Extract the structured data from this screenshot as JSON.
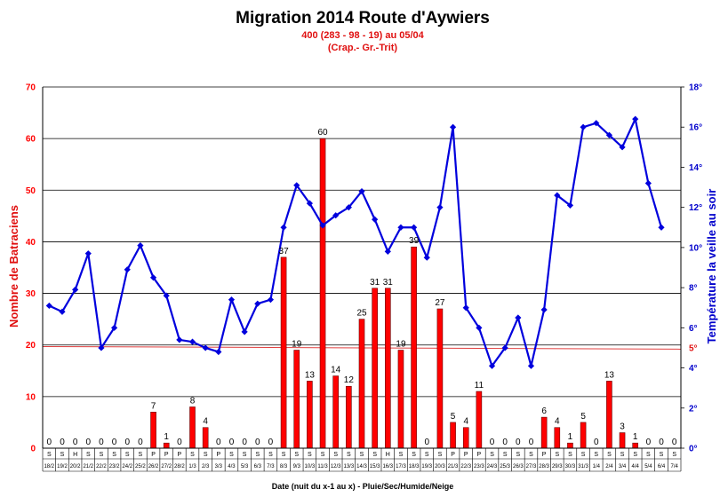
{
  "chart_data": {
    "type": "bar",
    "title": "Migration 2014 Route d'Aywiers",
    "subtitle_1": "400 (283 - 98 - 19) au 05/04",
    "subtitle_2": "(Crap.- Gr.-Trit)",
    "xlabel": "Date (nuit du x-1 au x) - Pluie/Sec/Humide/Neige",
    "ylabel": "Nombre de Batraciens",
    "y2label": "Température la veille au soir",
    "ylim": [
      0,
      70
    ],
    "y2lim": [
      0,
      18
    ],
    "y_ticks": [
      "0",
      "10",
      "20",
      "30",
      "40",
      "50",
      "60",
      "70"
    ],
    "y2_ticks": [
      "0°",
      "2°",
      "4°",
      "6°",
      "8°",
      "10°",
      "12°",
      "14°",
      "16°",
      "18°"
    ],
    "threshold_label": "5°",
    "threshold_value": 5,
    "categories": [
      "18/2",
      "19/2",
      "20/2",
      "21/2",
      "22/2",
      "23/2",
      "24/2",
      "25/2",
      "26/2",
      "27/2",
      "28/2",
      "1/3",
      "2/3",
      "3/3",
      "4/3",
      "5/3",
      "6/3",
      "7/3",
      "8/3",
      "9/3",
      "10/3",
      "11/3",
      "12/3",
      "13/3",
      "14/3",
      "15/3",
      "16/3",
      "17/3",
      "18/3",
      "19/3",
      "20/3",
      "21/3",
      "22/3",
      "23/3",
      "24/3",
      "25/3",
      "26/3",
      "27/3",
      "28/3",
      "29/3",
      "30/3",
      "31/3",
      "1/4",
      "2/4",
      "3/4",
      "4/4",
      "5/4",
      "6/4",
      "7/4"
    ],
    "conditions": [
      "S",
      "S",
      "H",
      "S",
      "S",
      "S",
      "S",
      "S",
      "P",
      "P",
      "P",
      "S",
      "S",
      "P",
      "S",
      "S",
      "S",
      "S",
      "S",
      "S",
      "S",
      "S",
      "S",
      "S",
      "S",
      "S",
      "H",
      "S",
      "S",
      "S",
      "S",
      "P",
      "P",
      "P",
      "S",
      "S",
      "S",
      "S",
      "P",
      "S",
      "S",
      "S",
      "S",
      "S",
      "S",
      "S",
      "S",
      "S",
      "S"
    ],
    "series": [
      {
        "name": "Nombre de Batraciens",
        "type": "bar",
        "color": "#ff0000",
        "values": [
          0,
          0,
          0,
          0,
          0,
          0,
          0,
          0,
          7,
          1,
          0,
          8,
          4,
          0,
          0,
          0,
          0,
          0,
          37,
          19,
          13,
          60,
          14,
          12,
          25,
          31,
          31,
          19,
          39,
          0,
          27,
          5,
          4,
          11,
          0,
          0,
          0,
          0,
          6,
          4,
          1,
          5,
          0,
          13,
          3,
          1,
          0,
          0,
          0
        ]
      },
      {
        "name": "Température la veille au soir",
        "type": "line",
        "color": "#0000dd",
        "axis": "right",
        "values": [
          7.1,
          6.8,
          7.9,
          9.7,
          5.0,
          6.0,
          8.9,
          10.1,
          8.5,
          7.6,
          5.4,
          5.3,
          5.0,
          4.8,
          7.4,
          5.8,
          7.2,
          7.4,
          11.0,
          13.1,
          12.2,
          11.1,
          11.6,
          12.0,
          12.8,
          11.4,
          9.8,
          11.0,
          11.0,
          9.5,
          12.0,
          16.0,
          7.0,
          6.0,
          4.1,
          5.0,
          6.5,
          4.1,
          6.9,
          12.6,
          12.1,
          16.0,
          16.2,
          15.6,
          15.0,
          16.4,
          13.2,
          11.0,
          null
        ]
      }
    ],
    "grid": true,
    "legend": "none",
    "colors": {
      "bars": "#ff0000",
      "line": "#0000dd",
      "threshold": "#e04040",
      "left_axis": "#ff0000",
      "right_axis": "#0000cc"
    }
  }
}
